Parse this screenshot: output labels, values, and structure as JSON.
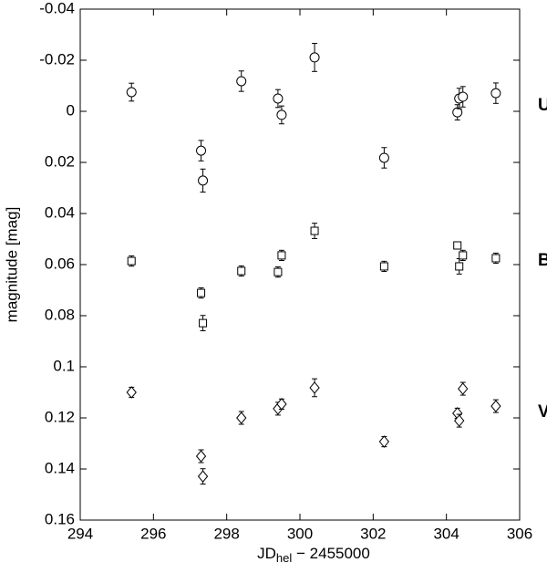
{
  "chart_data": {
    "type": "scatter",
    "x_label": {
      "main": "JD",
      "sub": "hel",
      "rest": " − 2455000"
    },
    "y_label": "magnitude  [mag]",
    "xlim": [
      294,
      306
    ],
    "xticks": [
      294,
      296,
      298,
      300,
      302,
      304,
      306
    ],
    "ylim": [
      0.16,
      -0.04
    ],
    "yticks": [
      -0.04,
      -0.02,
      0,
      0.02,
      0.04,
      0.06,
      0.08,
      0.1,
      0.12,
      0.14,
      0.16
    ],
    "y_inverted": true,
    "color": "#000000",
    "series": [
      {
        "name": "U",
        "marker": "circle",
        "x": [
          295.4,
          297.3,
          297.35,
          298.4,
          299.4,
          299.5,
          300.4,
          302.3,
          304.3,
          304.35,
          304.45,
          305.35
        ],
        "values": [
          -0.0075,
          0.0154,
          0.0271,
          -0.0118,
          -0.005,
          0.0014,
          -0.0211,
          0.0182,
          0.0004,
          -0.005,
          -0.0057,
          -0.0071
        ],
        "errors": [
          0.0035,
          0.004,
          0.0045,
          0.004,
          0.0035,
          0.0035,
          0.0055,
          0.004,
          0.003,
          0.004,
          0.004,
          0.004
        ]
      },
      {
        "name": "B",
        "marker": "square",
        "x": [
          295.4,
          297.3,
          297.35,
          298.4,
          299.4,
          299.5,
          300.4,
          302.3,
          304.3,
          304.35,
          304.45,
          305.35
        ],
        "values": [
          0.0586,
          0.0711,
          0.0829,
          0.0625,
          0.0629,
          0.0564,
          0.0468,
          0.0607,
          0.0525,
          0.0607,
          0.0564,
          0.0575
        ],
        "errors": [
          0.002,
          0.002,
          0.003,
          0.002,
          0.002,
          0.002,
          0.003,
          0.002,
          0.001,
          0.003,
          0.002,
          0.002
        ]
      },
      {
        "name": "V",
        "marker": "diamond",
        "x": [
          295.4,
          297.3,
          297.35,
          298.4,
          299.4,
          299.5,
          300.4,
          302.3,
          304.3,
          304.35,
          304.45,
          305.35
        ],
        "values": [
          0.11,
          0.135,
          0.1429,
          0.12,
          0.1164,
          0.1146,
          0.1082,
          0.1293,
          0.1182,
          0.1211,
          0.1086,
          0.1154
        ],
        "errors": [
          0.002,
          0.0025,
          0.003,
          0.0025,
          0.0025,
          0.002,
          0.0035,
          0.002,
          0.002,
          0.0025,
          0.0025,
          0.0025
        ]
      }
    ]
  }
}
